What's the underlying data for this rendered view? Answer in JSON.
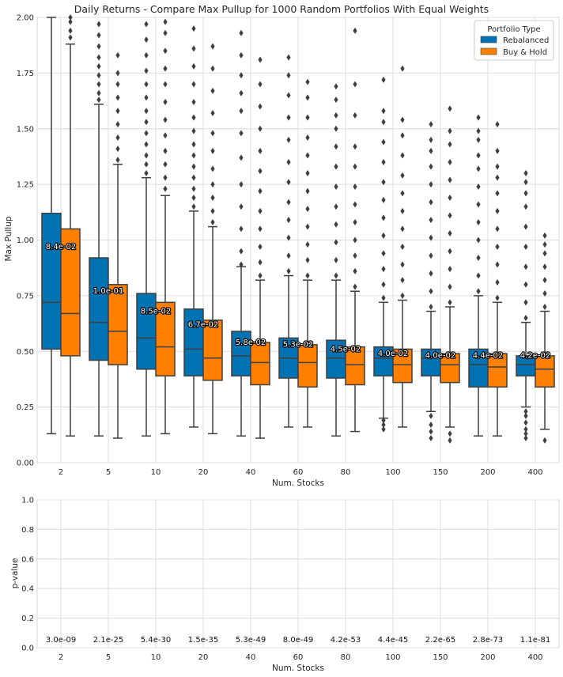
{
  "chart_data": [
    {
      "type": "box",
      "title": "Daily Returns - Compare Max Pullup for 1000 Random Portfolios With Equal Weights",
      "xlabel": "Num. Stocks",
      "ylabel": "Max Pullup",
      "ylim": [
        0,
        2.0
      ],
      "yticks": [
        "0.00",
        "0.25",
        "0.50",
        "0.75",
        "1.00",
        "1.25",
        "1.50",
        "1.75",
        "2.00"
      ],
      "categories": [
        "2",
        "5",
        "10",
        "20",
        "40",
        "60",
        "80",
        "100",
        "150",
        "200",
        "400"
      ],
      "grid": true,
      "legend": {
        "title": "Portfolio Type",
        "position": "top-right"
      },
      "colors": {
        "Rebalanced": "#0173b2",
        "Buy & Hold": "#ff7f00"
      },
      "series": [
        {
          "name": "Rebalanced",
          "boxes": [
            {
              "q1": 0.51,
              "median": 0.72,
              "q3": 1.12,
              "whislo": 0.13,
              "whishi": 2.0,
              "outliers": []
            },
            {
              "q1": 0.46,
              "median": 0.63,
              "q3": 0.92,
              "whislo": 0.12,
              "whishi": 1.61,
              "outliers": [
                1.63,
                1.66,
                1.7,
                1.74,
                1.78,
                1.82,
                1.87,
                1.92,
                1.97
              ]
            },
            {
              "q1": 0.42,
              "median": 0.56,
              "q3": 0.76,
              "whislo": 0.12,
              "whishi": 1.28,
              "outliers": [
                1.3,
                1.34,
                1.38,
                1.43,
                1.48,
                1.53,
                1.58,
                1.64,
                1.7,
                1.76,
                1.83,
                1.9,
                1.97
              ]
            },
            {
              "q1": 0.39,
              "median": 0.51,
              "q3": 0.69,
              "whislo": 0.16,
              "whishi": 1.13,
              "outliers": [
                1.15,
                1.19,
                1.23,
                1.28,
                1.33,
                1.38,
                1.43,
                1.49,
                1.55,
                1.62,
                1.7,
                1.78,
                1.86,
                1.95
              ]
            },
            {
              "q1": 0.39,
              "median": 0.48,
              "q3": 0.59,
              "whislo": 0.12,
              "whishi": 0.88,
              "outliers": [
                0.89,
                0.95,
                1.05,
                1.15,
                1.25,
                1.37,
                1.48,
                1.58,
                1.66,
                1.74,
                1.83,
                1.93
              ]
            },
            {
              "q1": 0.38,
              "median": 0.47,
              "q3": 0.56,
              "whislo": 0.16,
              "whishi": 0.84,
              "outliers": [
                0.86,
                0.93,
                1.01,
                1.09,
                1.17,
                1.26,
                1.35,
                1.45,
                1.55,
                1.65,
                1.74,
                1.82
              ]
            },
            {
              "q1": 0.38,
              "median": 0.47,
              "q3": 0.55,
              "whislo": 0.12,
              "whishi": 0.82,
              "outliers": [
                0.84,
                0.91,
                0.99,
                1.07,
                1.15,
                1.24,
                1.33,
                1.42,
                1.5,
                1.56,
                1.63,
                1.69
              ]
            },
            {
              "q1": 0.39,
              "median": 0.47,
              "q3": 0.52,
              "whislo": 0.2,
              "whishi": 0.72,
              "outliers": [
                0.15,
                0.17,
                0.19,
                0.74,
                0.8,
                0.87,
                0.94,
                1.02,
                1.1,
                1.18,
                1.26,
                1.35,
                1.44,
                1.53,
                1.58,
                1.72
              ]
            },
            {
              "q1": 0.39,
              "median": 0.47,
              "q3": 0.51,
              "whislo": 0.23,
              "whishi": 0.68,
              "outliers": [
                0.11,
                0.14,
                0.17,
                0.21,
                0.7,
                0.77,
                0.85,
                0.93,
                1.01,
                1.09,
                1.17,
                1.25,
                1.33,
                1.4,
                1.45,
                1.52
              ]
            },
            {
              "q1": 0.34,
              "median": 0.44,
              "q3": 0.51,
              "whislo": 0.12,
              "whishi": 0.75,
              "outliers": [
                0.77,
                0.84,
                0.92,
                1.0,
                1.08,
                1.16,
                1.24,
                1.32,
                1.38,
                1.45,
                1.49,
                1.55
              ]
            },
            {
              "q1": 0.39,
              "median": 0.44,
              "q3": 0.48,
              "whislo": 0.25,
              "whishi": 0.63,
              "outliers": [
                0.11,
                0.13,
                0.15,
                0.18,
                0.21,
                0.23,
                0.65,
                0.72,
                0.8,
                0.88,
                0.97,
                1.06,
                1.15,
                1.21,
                1.26,
                1.3
              ]
            }
          ]
        },
        {
          "name": "Buy & Hold",
          "boxes": [
            {
              "q1": 0.48,
              "median": 0.67,
              "q3": 1.05,
              "whislo": 0.12,
              "whishi": 1.88,
              "outliers": [
                1.91,
                1.94,
                1.98,
                2.0
              ]
            },
            {
              "q1": 0.44,
              "median": 0.59,
              "q3": 0.8,
              "whislo": 0.11,
              "whishi": 1.34,
              "outliers": [
                1.36,
                1.41,
                1.46,
                1.52,
                1.58,
                1.64,
                1.7,
                1.75,
                1.83
              ]
            },
            {
              "q1": 0.39,
              "median": 0.52,
              "q3": 0.72,
              "whislo": 0.13,
              "whishi": 1.2,
              "outliers": [
                1.23,
                1.28,
                1.34,
                1.4,
                1.47,
                1.54,
                1.62,
                1.7,
                1.77,
                1.85,
                1.93,
                1.98
              ]
            },
            {
              "q1": 0.37,
              "median": 0.47,
              "q3": 0.64,
              "whislo": 0.13,
              "whishi": 1.06,
              "outliers": [
                1.08,
                1.13,
                1.19,
                1.25,
                1.32,
                1.4,
                1.48,
                1.57,
                1.67,
                1.77,
                1.87
              ]
            },
            {
              "q1": 0.35,
              "median": 0.45,
              "q3": 0.54,
              "whislo": 0.11,
              "whishi": 0.82,
              "outliers": [
                0.84,
                0.9,
                0.97,
                1.05,
                1.13,
                1.22,
                1.31,
                1.4,
                1.5,
                1.6,
                1.7,
                1.81
              ]
            },
            {
              "q1": 0.34,
              "median": 0.45,
              "q3": 0.53,
              "whislo": 0.16,
              "whishi": 0.82,
              "outliers": [
                0.84,
                0.91,
                0.98,
                1.06,
                1.14,
                1.22,
                1.3,
                1.38,
                1.46,
                1.55,
                1.64,
                1.71
              ]
            },
            {
              "q1": 0.35,
              "median": 0.44,
              "q3": 0.52,
              "whislo": 0.14,
              "whishi": 0.77,
              "outliers": [
                0.79,
                0.86,
                0.93,
                1.0,
                1.08,
                1.16,
                1.24,
                1.33,
                1.42,
                1.56,
                1.7,
                1.94
              ]
            },
            {
              "q1": 0.36,
              "median": 0.44,
              "q3": 0.51,
              "whislo": 0.16,
              "whishi": 0.73,
              "outliers": [
                0.75,
                0.82,
                0.89,
                0.97,
                1.05,
                1.13,
                1.21,
                1.29,
                1.38,
                1.47,
                1.54,
                1.77
              ]
            },
            {
              "q1": 0.36,
              "median": 0.44,
              "q3": 0.49,
              "whislo": 0.16,
              "whishi": 0.7,
              "outliers": [
                0.1,
                0.13,
                0.72,
                0.79,
                0.87,
                0.95,
                1.03,
                1.11,
                1.19,
                1.27,
                1.35,
                1.43,
                1.49,
                1.59
              ]
            },
            {
              "q1": 0.34,
              "median": 0.43,
              "q3": 0.49,
              "whislo": 0.12,
              "whishi": 0.72,
              "outliers": [
                0.74,
                0.81,
                0.89,
                0.97,
                1.05,
                1.13,
                1.21,
                1.28,
                1.33,
                1.4,
                1.52
              ]
            },
            {
              "q1": 0.34,
              "median": 0.42,
              "q3": 0.48,
              "whislo": 0.15,
              "whishi": 0.68,
              "outliers": [
                0.1,
                0.7,
                0.76,
                0.82,
                0.88,
                0.94,
                0.98,
                1.02
              ]
            }
          ]
        }
      ],
      "annotations": [
        "8.4e-02",
        "1.0e-01",
        "8.5e-02",
        "6.7e-02",
        "5.8e-02",
        "5.3e-02",
        "4.5e-02",
        "4.0e-02",
        "4.0e-02",
        "4.4e-02",
        "4.2e-02"
      ],
      "annotation_y": [
        0.96,
        0.76,
        0.67,
        0.61,
        0.53,
        0.52,
        0.5,
        0.48,
        0.47,
        0.47,
        0.47
      ]
    },
    {
      "type": "bar",
      "xlabel": "Num. Stocks",
      "ylabel": "p-value",
      "ylim": [
        0,
        1.0
      ],
      "yticks": [
        "0.0",
        "0.2",
        "0.4",
        "0.6",
        "0.8",
        "1.0"
      ],
      "categories": [
        "2",
        "5",
        "10",
        "20",
        "40",
        "60",
        "80",
        "100",
        "150",
        "200",
        "400"
      ],
      "grid": true,
      "values": [
        3e-09,
        2.1e-25,
        5.4e-30,
        1.5e-35,
        5.3e-49,
        8e-49,
        4.2e-53,
        4.4e-45,
        2.2e-65,
        2.8e-73,
        1.1e-81
      ],
      "labels": [
        "3.0e-09",
        "2.1e-25",
        "5.4e-30",
        "1.5e-35",
        "5.3e-49",
        "8.0e-49",
        "4.2e-53",
        "4.4e-45",
        "2.2e-65",
        "2.8e-73",
        "1.1e-81"
      ]
    }
  ]
}
